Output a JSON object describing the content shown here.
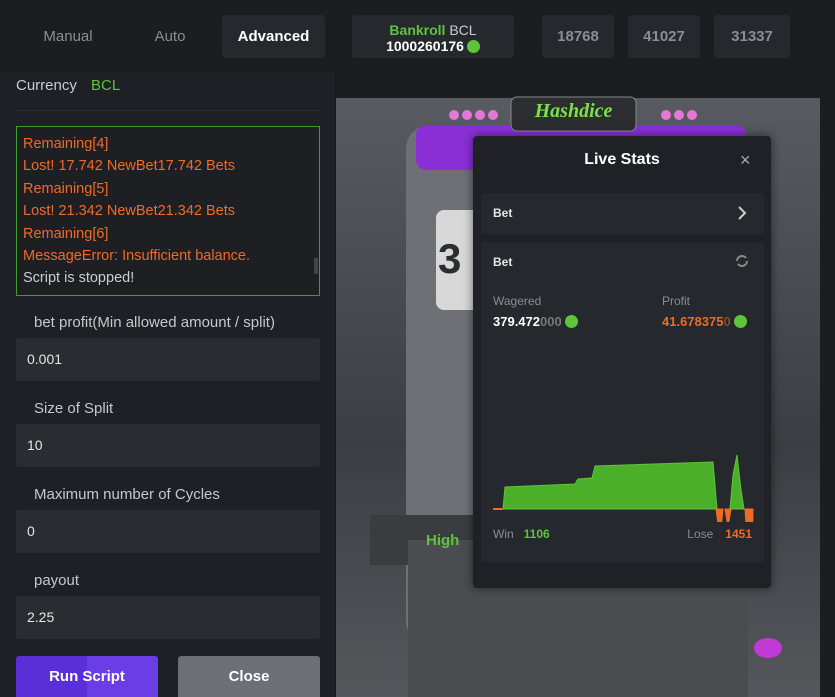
{
  "tabs": [
    "Manual",
    "Auto",
    "Advanced"
  ],
  "bankroll": {
    "label": "Bankroll",
    "currency": "BCL",
    "value": "1000260176"
  },
  "quick_buttons": [
    "18768",
    "41027",
    "31337"
  ],
  "currency": {
    "label": "Currency",
    "value": "BCL"
  },
  "log": [
    "Remaining[4]",
    "Lost! 17.742 NewBet17.742 Bets",
    "Remaining[5]",
    "Lost! 21.342 NewBet21.342 Bets",
    "Remaining[6]",
    "MessageError: Insufficient balance.",
    "Script is stopped!"
  ],
  "fields": [
    {
      "label": "bet profit(Min allowed amount / split)",
      "value": "0.001"
    },
    {
      "label": "Size of Split",
      "value": "10"
    },
    {
      "label": "Maximum number of Cycles",
      "value": "0"
    },
    {
      "label": "payout",
      "value": "2.25"
    }
  ],
  "buttons": [
    "Run Script",
    "Close"
  ],
  "game": {
    "logo": "Hashdice",
    "dice_digit": "3",
    "high": "High"
  },
  "live_stats": {
    "title": "Live Stats",
    "close": "×",
    "bet_row": "Bet",
    "section": "Bet",
    "wagered": {
      "label": "Wagered",
      "main": "379.472",
      "trailing": "000"
    },
    "profit": {
      "label": "Profit",
      "main": "41.678375",
      "trailing": "0"
    },
    "win": {
      "label": "Win",
      "value": "1106"
    },
    "lose": {
      "label": "Lose",
      "value": "1451"
    }
  }
}
